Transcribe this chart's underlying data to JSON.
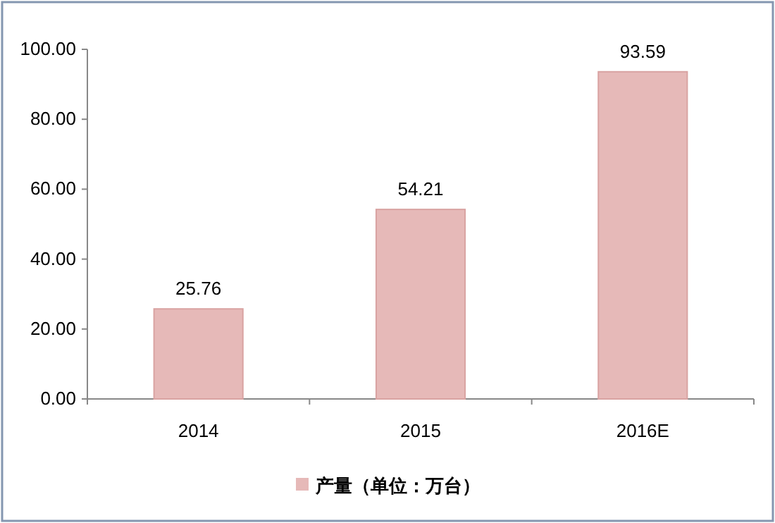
{
  "chart_data": {
    "type": "bar",
    "categories": [
      "2014",
      "2015",
      "2016E"
    ],
    "series": [
      {
        "name": "产量（单位：万台）",
        "color": "#e6b9b8",
        "values": [
          25.76,
          54.21,
          93.59
        ]
      }
    ],
    "ylim": [
      0,
      100
    ],
    "yticks": [
      {
        "value": 0,
        "label": "0.00"
      },
      {
        "value": 20,
        "label": "20.00"
      },
      {
        "value": 40,
        "label": "40.00"
      },
      {
        "value": 60,
        "label": "60.00"
      },
      {
        "value": 80,
        "label": "80.00"
      },
      {
        "value": 100,
        "label": "100.00"
      }
    ],
    "data_labels": true,
    "grid": false,
    "legend": "bottom"
  }
}
